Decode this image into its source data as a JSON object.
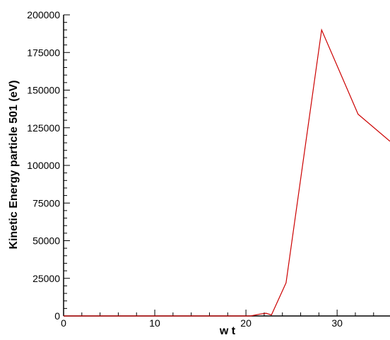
{
  "chart_data": {
    "type": "line",
    "xlabel": "w t",
    "ylabel": "Kinetic Energy particle 501 (eV)",
    "xlim": [
      0,
      35.8
    ],
    "ylim": [
      0,
      200000
    ],
    "x_ticks": [
      0,
      10,
      20,
      30
    ],
    "x_tick_labels": [
      "0",
      "10",
      "20",
      "30"
    ],
    "y_ticks": [
      0,
      25000,
      50000,
      75000,
      100000,
      125000,
      150000,
      175000,
      200000
    ],
    "y_tick_labels": [
      "0",
      "25000",
      "50000",
      "75000",
      "100000",
      "125000",
      "150000",
      "175000",
      "200000"
    ],
    "grid": false,
    "colors": {
      "series": "#cc0000",
      "axes": "#000000"
    },
    "series": [
      {
        "x": [
          0,
          20.5,
          21.5,
          22.2,
          22.8,
          24.4,
          28.3,
          32.3,
          35.8
        ],
        "y": [
          0,
          0,
          1200,
          1800,
          700,
          22000,
          190000,
          134000,
          116000
        ]
      }
    ]
  }
}
